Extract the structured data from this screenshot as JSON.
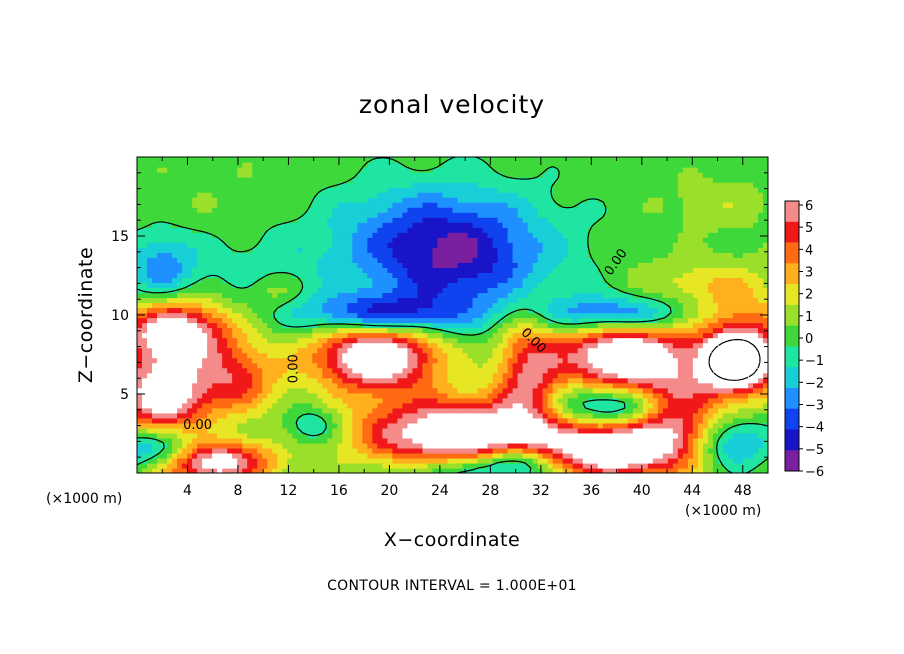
{
  "chart_data": {
    "type": "heatmap",
    "title": "zonal velocity",
    "xlabel": "X−coordinate",
    "ylabel": "Z−coordinate",
    "x_unit": "(×1000 m)",
    "y_unit": "(×1000 m)",
    "xlim": [
      0,
      50
    ],
    "ylim": [
      0,
      20
    ],
    "x_ticks": [
      4,
      8,
      12,
      16,
      20,
      24,
      28,
      32,
      36,
      40,
      44,
      48
    ],
    "y_ticks": [
      5,
      10,
      15
    ],
    "colorbar": {
      "ticks": [
        "6",
        "5",
        "4",
        "3",
        "2",
        "1",
        "0",
        "−1",
        "−2",
        "−3",
        "−4",
        "−5",
        "−6"
      ],
      "range": [
        -6,
        6
      ]
    },
    "contour_labels": [
      "0.00",
      "0.00",
      "0.00",
      "0.00"
    ],
    "footer": "CONTOUR INTERVAL = 1.000E+01",
    "features": [
      {
        "x": 25,
        "z": 13.5,
        "value": -5.2,
        "sx": 5.5,
        "sz": 2.6
      },
      {
        "x": 2,
        "z": 13,
        "value": -3.2,
        "sx": 2.0,
        "sz": 1.6
      },
      {
        "x": 19,
        "z": 7.5,
        "value": 9,
        "sx": 3.6,
        "sz": 1.6
      },
      {
        "x": 38.5,
        "z": 7.5,
        "value": 9,
        "sx": 3.6,
        "sz": 1.7
      },
      {
        "x": 19,
        "z": 10,
        "value": -5.5,
        "sx": 4.2,
        "sz": 0.9
      },
      {
        "x": 38,
        "z": 10,
        "value": -5.5,
        "sx": 4.0,
        "sz": 0.9
      },
      {
        "x": 38,
        "z": 4.2,
        "value": -5,
        "sx": 4.0,
        "sz": 1.0
      },
      {
        "x": 3,
        "z": 9,
        "value": 8,
        "sx": 3.0,
        "sz": 1.4
      },
      {
        "x": 2,
        "z": 5,
        "value": 8,
        "sx": 2.6,
        "sz": 1.8
      },
      {
        "x": 8,
        "z": 6,
        "value": 4.5,
        "sx": 2.4,
        "sz": 1.6
      },
      {
        "x": 1.5,
        "z": 1.5,
        "value": -4.5,
        "sx": 2.8,
        "sz": 0.9
      },
      {
        "x": 6,
        "z": 0.7,
        "value": 8,
        "sx": 3.2,
        "sz": 1.0
      },
      {
        "x": 26,
        "z": 2.5,
        "value": 9,
        "sx": 6.0,
        "sz": 1.6
      },
      {
        "x": 31,
        "z": 6.5,
        "value": 5,
        "sx": 1.8,
        "sz": 2.6
      },
      {
        "x": 38,
        "z": 1.5,
        "value": 8,
        "sx": 3.4,
        "sz": 1.3
      },
      {
        "x": 44,
        "z": 3.5,
        "value": 4,
        "sx": 3.0,
        "sz": 2.4
      },
      {
        "x": 48,
        "z": 8,
        "value": 6,
        "sx": 2.6,
        "sz": 2.0
      },
      {
        "x": 47.5,
        "z": 7,
        "value": 9,
        "sx": 1.6,
        "sz": 1.0
      },
      {
        "x": 47,
        "z": 2,
        "value": -4.5,
        "sx": 2.0,
        "sz": 1.2
      },
      {
        "x": 30,
        "z": 0.7,
        "value": -5,
        "sx": 2.0,
        "sz": 0.8
      },
      {
        "x": 25,
        "z": 0.3,
        "value": -3,
        "sx": 3.0,
        "sz": 0.7
      },
      {
        "x": 14,
        "z": 3,
        "value": -2.6,
        "sx": 1.5,
        "sz": 0.8
      },
      {
        "x": 10,
        "z": 13,
        "value": -1,
        "sx": 4.0,
        "sz": 2.0
      },
      {
        "x": 22,
        "z": 16,
        "value": -1.5,
        "sx": 6.0,
        "sz": 2.0
      },
      {
        "x": 8,
        "z": 17,
        "value": 0.4,
        "sx": 6.0,
        "sz": 2.0
      },
      {
        "x": 46,
        "z": 17,
        "value": 1.2,
        "sx": 3.0,
        "sz": 1.2
      },
      {
        "x": 45,
        "z": 12,
        "value": 2.0,
        "sx": 4.0,
        "sz": 1.2
      },
      {
        "x": 11,
        "z": 11.5,
        "value": 1.5,
        "sx": 1.5,
        "sz": 0.8
      },
      {
        "x": 42,
        "z": 4,
        "value": 3,
        "sx": 2.0,
        "sz": 1.5
      }
    ]
  }
}
